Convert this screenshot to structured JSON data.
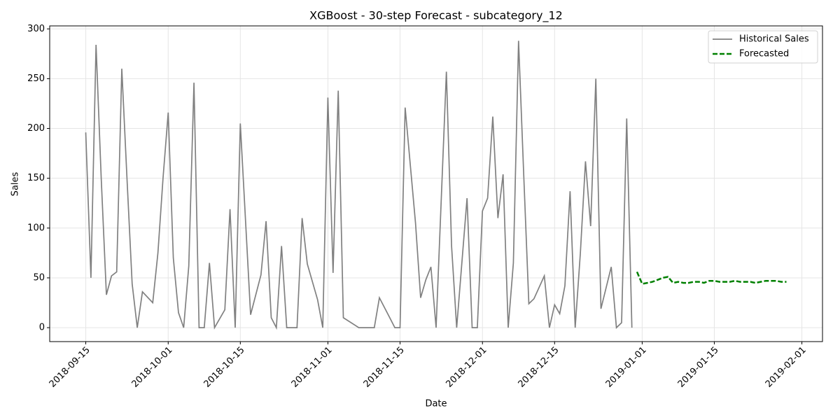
{
  "chart_data": {
    "type": "line",
    "title": "XGBoost - 30-step Forecast - subcategory_12",
    "xlabel": "Date",
    "ylabel": "Sales",
    "xlim": [
      "2018-09-08",
      "2019-02-05"
    ],
    "xticks": [
      "2018-09-15",
      "2018-10-01",
      "2018-10-15",
      "2018-11-01",
      "2018-11-15",
      "2018-12-01",
      "2018-12-15",
      "2019-01-01",
      "2019-01-15",
      "2019-02-01"
    ],
    "ylim": [
      -14,
      303
    ],
    "yticks": [
      0,
      50,
      100,
      150,
      200,
      250,
      300
    ],
    "grid": true,
    "legend": "upper right",
    "series": [
      {
        "name": "Historical Sales",
        "color": "#808080",
        "linestyle": "solid",
        "x": [
          "2018-09-15",
          "2018-09-16",
          "2018-09-17",
          "2018-09-18",
          "2018-09-19",
          "2018-09-20",
          "2018-09-21",
          "2018-09-22",
          "2018-09-23",
          "2018-09-24",
          "2018-09-25",
          "2018-09-26",
          "2018-09-28",
          "2018-09-29",
          "2018-09-30",
          "2018-10-01",
          "2018-10-02",
          "2018-10-03",
          "2018-10-04",
          "2018-10-05",
          "2018-10-06",
          "2018-10-07",
          "2018-10-08",
          "2018-10-09",
          "2018-10-10",
          "2018-10-12",
          "2018-10-13",
          "2018-10-14",
          "2018-10-15",
          "2018-10-17",
          "2018-10-19",
          "2018-10-20",
          "2018-10-21",
          "2018-10-22",
          "2018-10-23",
          "2018-10-24",
          "2018-10-25",
          "2018-10-26",
          "2018-10-27",
          "2018-10-28",
          "2018-10-30",
          "2018-10-31",
          "2018-11-01",
          "2018-11-02",
          "2018-11-03",
          "2018-11-04",
          "2018-11-07",
          "2018-11-10",
          "2018-11-11",
          "2018-11-13",
          "2018-11-14",
          "2018-11-15",
          "2018-11-16",
          "2018-11-18",
          "2018-11-19",
          "2018-11-20",
          "2018-11-21",
          "2018-11-22",
          "2018-11-24",
          "2018-11-25",
          "2018-11-26",
          "2018-11-28",
          "2018-11-29",
          "2018-11-30",
          "2018-12-01",
          "2018-12-02",
          "2018-12-03",
          "2018-12-04",
          "2018-12-05",
          "2018-12-06",
          "2018-12-07",
          "2018-12-08",
          "2018-12-09",
          "2018-12-10",
          "2018-12-11",
          "2018-12-13",
          "2018-12-14",
          "2018-12-15",
          "2018-12-16",
          "2018-12-17",
          "2018-12-18",
          "2018-12-19",
          "2018-12-20",
          "2018-12-21",
          "2018-12-22",
          "2018-12-23",
          "2018-12-24",
          "2018-12-26",
          "2018-12-27",
          "2018-12-28",
          "2018-12-29",
          "2018-12-30"
        ],
        "values": [
          196,
          50,
          284,
          150,
          33,
          52,
          56,
          260,
          150,
          44,
          0,
          36,
          25,
          75,
          150,
          216,
          70,
          15,
          0,
          62,
          246,
          0,
          0,
          65,
          0,
          18,
          119,
          0,
          205,
          13,
          53,
          107,
          10,
          0,
          82,
          0,
          0,
          0,
          110,
          64,
          28,
          0,
          231,
          55,
          238,
          10,
          0,
          0,
          30,
          10,
          0,
          0,
          221,
          105,
          30,
          48,
          61,
          0,
          257,
          82,
          0,
          130,
          0,
          0,
          117,
          130,
          212,
          110,
          154,
          0,
          65,
          288,
          155,
          24,
          29,
          52,
          0,
          23,
          14,
          42,
          137,
          0,
          75,
          167,
          102,
          250,
          19,
          61,
          0,
          5,
          210,
          0
        ]
      },
      {
        "name": "Forecasted",
        "color": "#008000",
        "linestyle": "dashed",
        "x": [
          "2018-12-31",
          "2019-01-01",
          "2019-01-02",
          "2019-01-03",
          "2019-01-04",
          "2019-01-05",
          "2019-01-06",
          "2019-01-07",
          "2019-01-08",
          "2019-01-09",
          "2019-01-10",
          "2019-01-11",
          "2019-01-12",
          "2019-01-13",
          "2019-01-14",
          "2019-01-15",
          "2019-01-16",
          "2019-01-17",
          "2019-01-18",
          "2019-01-19",
          "2019-01-20",
          "2019-01-21",
          "2019-01-22",
          "2019-01-23",
          "2019-01-24",
          "2019-01-25",
          "2019-01-26",
          "2019-01-27",
          "2019-01-28",
          "2019-01-29"
        ],
        "values": [
          56,
          44,
          45,
          46,
          48,
          50,
          51,
          45,
          46,
          45,
          45,
          46,
          46,
          45,
          47,
          47,
          46,
          46,
          46,
          47,
          46,
          46,
          46,
          45,
          46,
          47,
          47,
          47,
          46,
          46
        ]
      }
    ]
  }
}
